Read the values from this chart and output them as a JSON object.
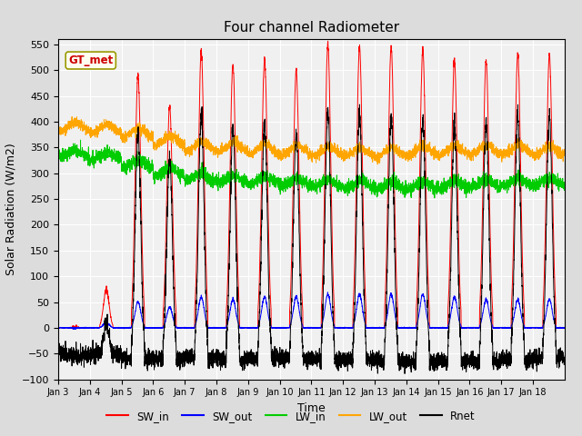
{
  "title": "Four channel Radiometer",
  "xlabel": "Time",
  "ylabel": "Solar Radiation (W/m2)",
  "ylim": [
    -100,
    560
  ],
  "yticks": [
    -100,
    -50,
    0,
    50,
    100,
    150,
    200,
    250,
    300,
    350,
    400,
    450,
    500,
    550
  ],
  "x_labels": [
    "Jan 3",
    "Jan 4",
    "Jan 5",
    "Jan 6",
    "Jan 7",
    "Jan 8",
    "Jan 9",
    "Jan 10",
    "Jan 11",
    "Jan 12",
    "Jan 13",
    "Jan 14",
    "Jan 15",
    "Jan 16",
    "Jan 17",
    "Jan 18"
  ],
  "annotation_text": "GT_met",
  "annotation_color": "#CC0000",
  "annotation_bg": "#FFFFF0",
  "annotation_edge": "#999900",
  "colors": {
    "SW_in": "#FF0000",
    "SW_out": "#0000FF",
    "LW_in": "#00CC00",
    "LW_out": "#FFA500",
    "Rnet": "#000000"
  },
  "legend_labels": [
    "SW_in",
    "SW_out",
    "LW_in",
    "LW_out",
    "Rnet"
  ],
  "fig_bg": "#DCDCDC",
  "plot_bg": "#F0F0F0",
  "n_days": 16,
  "points_per_day": 288,
  "sw_in_peaks": [
    0,
    75,
    490,
    430,
    535,
    510,
    520,
    500,
    550,
    545,
    545,
    540,
    520,
    520,
    530,
    530
  ],
  "sw_out_peaks": [
    0,
    10,
    50,
    40,
    60,
    55,
    60,
    60,
    65,
    65,
    65,
    65,
    60,
    55,
    55,
    55
  ],
  "lw_in_bases": [
    330,
    325,
    310,
    295,
    285,
    280,
    278,
    275,
    272,
    270,
    268,
    268,
    270,
    272,
    275,
    275
  ],
  "lw_out_bases": [
    380,
    375,
    368,
    352,
    342,
    340,
    336,
    334,
    332,
    330,
    330,
    333,
    334,
    335,
    335,
    332
  ]
}
